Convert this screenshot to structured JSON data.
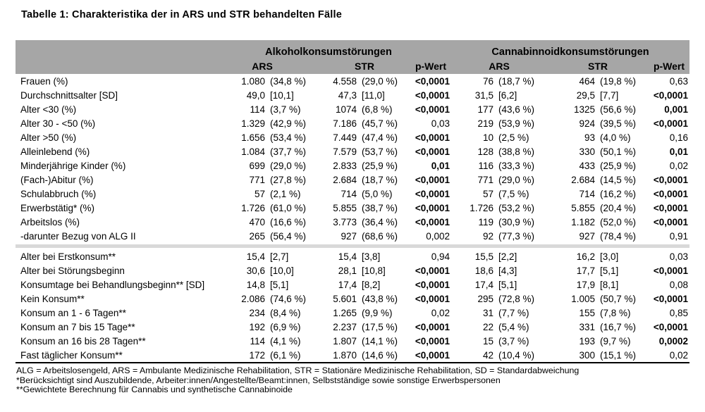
{
  "title": "Tabelle 1: Charakteristika der in ARS und STR behandelten Fälle",
  "table": {
    "group_headers": [
      "Alkoholkonsumstörungen",
      "Cannabinnoidkonsumstörungen"
    ],
    "sub_headers": [
      "ARS",
      "STR",
      "p-Wert",
      "ARS",
      "STR",
      "p-Wert"
    ],
    "sections": [
      {
        "rows": [
          {
            "label": "Frauen (%)",
            "a_ars": [
              "1.080",
              "(34,8 %)"
            ],
            "a_str": [
              "4.558",
              "(29,0 %)"
            ],
            "a_p": "<0,0001",
            "a_p_bold": true,
            "c_ars": [
              "76",
              "(18,7 %)"
            ],
            "c_str": [
              "464",
              "(19,8 %)"
            ],
            "c_p": "0,63",
            "c_p_bold": false
          },
          {
            "label": "Durchschnittsalter [SD]",
            "a_ars": [
              "49,0",
              "[10,1]"
            ],
            "a_str": [
              "47,3",
              "[11,0]"
            ],
            "a_p": "<0,0001",
            "a_p_bold": true,
            "c_ars": [
              "31,5",
              "[6,2]"
            ],
            "c_str": [
              "29,5",
              "[7,7]"
            ],
            "c_p": "<0,0001",
            "c_p_bold": true
          },
          {
            "label": "Alter <30 (%)",
            "a_ars": [
              "114",
              "(3,7 %)"
            ],
            "a_str": [
              "1074",
              "(6,8 %)"
            ],
            "a_p": "<0,0001",
            "a_p_bold": true,
            "c_ars": [
              "177",
              "(43,6 %)"
            ],
            "c_str": [
              "1325",
              "(56,6 %)"
            ],
            "c_p": "0,001",
            "c_p_bold": true
          },
          {
            "label": "Alter 30 - <50 (%)",
            "a_ars": [
              "1.329",
              "(42,9 %)"
            ],
            "a_str": [
              "7.186",
              "(45,7 %)"
            ],
            "a_p": "0,03",
            "a_p_bold": false,
            "c_ars": [
              "219",
              "(53,9 %)"
            ],
            "c_str": [
              "924",
              "(39,5 %)"
            ],
            "c_p": "<0,0001",
            "c_p_bold": true
          },
          {
            "label": "Alter >50 (%)",
            "a_ars": [
              "1.656",
              "(53,4 %)"
            ],
            "a_str": [
              "7.449",
              "(47,4 %)"
            ],
            "a_p": "<0,0001",
            "a_p_bold": true,
            "c_ars": [
              "10",
              "(2,5 %)"
            ],
            "c_str": [
              "93",
              "(4,0 %)"
            ],
            "c_p": "0,16",
            "c_p_bold": false
          },
          {
            "label": "Alleinlebend (%)",
            "a_ars": [
              "1.084",
              "(37,7 %)"
            ],
            "a_str": [
              "7.579",
              "(53,7 %)"
            ],
            "a_p": "<0,0001",
            "a_p_bold": true,
            "c_ars": [
              "128",
              "(38,8 %)"
            ],
            "c_str": [
              "330",
              "(50,1 %)"
            ],
            "c_p": "0,01",
            "c_p_bold": true
          },
          {
            "label": "Minderjährige Kinder (%)",
            "a_ars": [
              "699",
              "(29,0 %)"
            ],
            "a_str": [
              "2.833",
              "(25,9 %)"
            ],
            "a_p": "0,01",
            "a_p_bold": true,
            "c_ars": [
              "116",
              "(33,3 %)"
            ],
            "c_str": [
              "433",
              "(25,9 %)"
            ],
            "c_p": "0,02",
            "c_p_bold": false
          },
          {
            "label": "(Fach-)Abitur (%)",
            "a_ars": [
              "771",
              "(27,8 %)"
            ],
            "a_str": [
              "2.684",
              "(18,7 %)"
            ],
            "a_p": "<0,0001",
            "a_p_bold": true,
            "c_ars": [
              "771",
              "(29,0 %)"
            ],
            "c_str": [
              "2.684",
              "(14,5 %)"
            ],
            "c_p": "<0,0001",
            "c_p_bold": true
          },
          {
            "label": "Schulabbruch (%)",
            "a_ars": [
              "57",
              "(2,1 %)"
            ],
            "a_str": [
              "714",
              "(5,0 %)"
            ],
            "a_p": "<0,0001",
            "a_p_bold": true,
            "c_ars": [
              "57",
              "(7,5 %)"
            ],
            "c_str": [
              "714",
              "(16,2 %)"
            ],
            "c_p": "<0,0001",
            "c_p_bold": true
          },
          {
            "label": "Erwerbstätig* (%)",
            "a_ars": [
              "1.726",
              "(61,0 %)"
            ],
            "a_str": [
              "5.855",
              "(38,7 %)"
            ],
            "a_p": "<0,0001",
            "a_p_bold": true,
            "c_ars": [
              "1.726",
              "(53,2 %)"
            ],
            "c_str": [
              "5.855",
              "(20,4 %)"
            ],
            "c_p": "<0,0001",
            "c_p_bold": true
          },
          {
            "label": "Arbeitslos (%)",
            "a_ars": [
              "470",
              "(16,6 %)"
            ],
            "a_str": [
              "3.773",
              "(36,4 %)"
            ],
            "a_p": "<0,0001",
            "a_p_bold": true,
            "c_ars": [
              "119",
              "(30,9 %)"
            ],
            "c_str": [
              "1.182",
              "(52,0 %)"
            ],
            "c_p": "<0,0001",
            "c_p_bold": true
          },
          {
            "label": "-darunter Bezug von ALG II",
            "a_ars": [
              "265",
              "(56,4 %)"
            ],
            "a_str": [
              "927",
              "(68,6 %)"
            ],
            "a_p": "0,002",
            "a_p_bold": false,
            "c_ars": [
              "92",
              "(77,3 %)"
            ],
            "c_str": [
              "927",
              "(78,4 %)"
            ],
            "c_p": "0,91",
            "c_p_bold": false
          }
        ]
      },
      {
        "rows": [
          {
            "label": "Alter bei Erstkonsum**",
            "a_ars": [
              "15,4",
              "[2,7]"
            ],
            "a_str": [
              "15,4",
              "[3,8]"
            ],
            "a_p": "0,94",
            "a_p_bold": false,
            "c_ars": [
              "15,5",
              "[2,2]"
            ],
            "c_str": [
              "16,2",
              "[3,0]"
            ],
            "c_p": "0,03",
            "c_p_bold": false
          },
          {
            "label": "Alter bei Störungsbeginn",
            "a_ars": [
              "30,6",
              "[10,0]"
            ],
            "a_str": [
              "28,1",
              "[10,8]"
            ],
            "a_p": "<0,0001",
            "a_p_bold": true,
            "c_ars": [
              "18,6",
              "[4,3]"
            ],
            "c_str": [
              "17,7",
              "[5,1]"
            ],
            "c_p": "<0,0001",
            "c_p_bold": true
          },
          {
            "label": "Konsumtage bei Behandlungsbeginn** [SD]",
            "a_ars": [
              "14,8",
              "[5,1]"
            ],
            "a_str": [
              "17,4",
              "[8,2]"
            ],
            "a_p": "<0,0001",
            "a_p_bold": true,
            "c_ars": [
              "17,4",
              "[5,1]"
            ],
            "c_str": [
              "17,9",
              "[8,1]"
            ],
            "c_p": "0,08",
            "c_p_bold": false
          },
          {
            "label": "Kein Konsum**",
            "a_ars": [
              "2.086",
              "(74,6 %)"
            ],
            "a_str": [
              "5.601",
              "(43,8 %)"
            ],
            "a_p": "<0,0001",
            "a_p_bold": true,
            "c_ars": [
              "295",
              "(72,8 %)"
            ],
            "c_str": [
              "1.005",
              "(50,7 %)"
            ],
            "c_p": "<0,0001",
            "c_p_bold": true
          },
          {
            "label": "Konsum an 1 - 6 Tagen**",
            "a_ars": [
              "234",
              "(8,4 %)"
            ],
            "a_str": [
              "1.265",
              "(9,9 %)"
            ],
            "a_p": "0,02",
            "a_p_bold": false,
            "c_ars": [
              "31",
              "(7,7 %)"
            ],
            "c_str": [
              "155",
              "(7,8 %)"
            ],
            "c_p": "0,85",
            "c_p_bold": false
          },
          {
            "label": "Konsum an 7 bis 15 Tage**",
            "a_ars": [
              "192",
              "(6,9 %)"
            ],
            "a_str": [
              "2.237",
              "(17,5 %)"
            ],
            "a_p": "<0,0001",
            "a_p_bold": true,
            "c_ars": [
              "22",
              "(5,4 %)"
            ],
            "c_str": [
              "331",
              "(16,7 %)"
            ],
            "c_p": "<0,0001",
            "c_p_bold": true
          },
          {
            "label": "Konsum an 16 bis 28 Tagen**",
            "a_ars": [
              "114",
              "(4,1 %)"
            ],
            "a_str": [
              "1.807",
              "(14,1 %)"
            ],
            "a_p": "<0,0001",
            "a_p_bold": true,
            "c_ars": [
              "15",
              "(3,7 %)"
            ],
            "c_str": [
              "193",
              "(9,7 %)"
            ],
            "c_p": "0,0002",
            "c_p_bold": true
          },
          {
            "label": "Fast täglicher Konsum**",
            "a_ars": [
              "172",
              "(6,1 %)"
            ],
            "a_str": [
              "1.870",
              "(14,6 %)"
            ],
            "a_p": "<0,0001",
            "a_p_bold": true,
            "c_ars": [
              "42",
              "(10,4 %)"
            ],
            "c_str": [
              "300",
              "(15,1 %)"
            ],
            "c_p": "0,02",
            "c_p_bold": false
          }
        ]
      }
    ]
  },
  "footnotes": [
    "ALG = Arbeitslosengeld, ARS = Ambulante Medizinische Rehabilitation, STR = Stationäre Medizinische Rehabilitation, SD = Standardabweichung",
    "*Berücksichtigt sind Auszubildende, Arbeiter:innen/Angestellte/Beamt:innen, Selbstständige sowie sonstige Erwerbspersonen",
    "**Gewichtete Berechnung für Cannabis und synthetische Cannabinoide"
  ],
  "colors": {
    "header_gray": "#a6a6a6",
    "separator_gray": "#d9d9d9"
  }
}
